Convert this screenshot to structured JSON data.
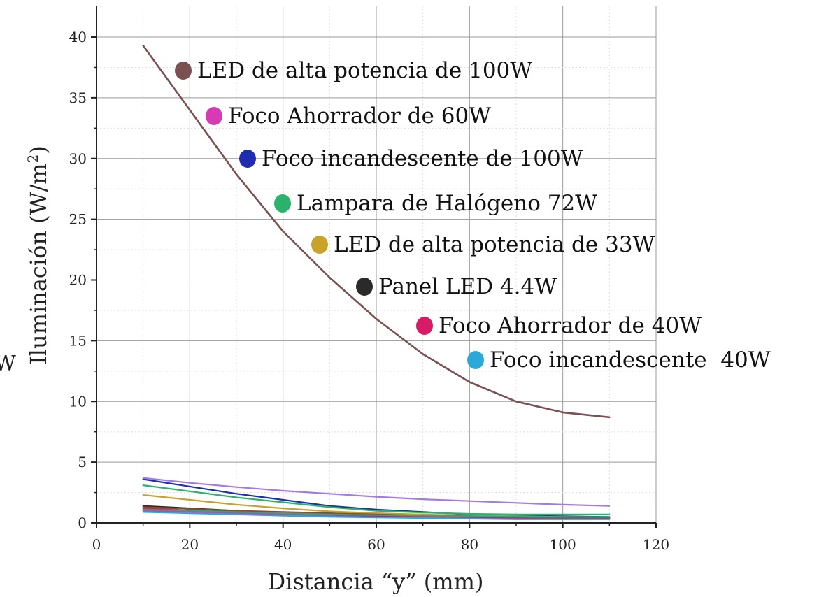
{
  "chart_data": {
    "type": "line",
    "title": "",
    "xlabel": "Distancia “y” (mm)",
    "ylabel": "Iluminación (W/m2)",
    "ylabel_main": "Iluminación (W/m",
    "ylabel_sup": "2",
    "ylabel_close": ")",
    "xlim": [
      0,
      120
    ],
    "ylim": [
      0,
      42
    ],
    "x_ticks": [
      0,
      20,
      40,
      60,
      80,
      100,
      120
    ],
    "y_ticks": [
      0,
      5,
      10,
      15,
      20,
      25,
      30,
      35,
      40
    ],
    "grid": true,
    "legend_position": "inside-center",
    "x": [
      10,
      20,
      30,
      40,
      50,
      60,
      70,
      80,
      90,
      100,
      110
    ],
    "series": [
      {
        "name": "LED de alta potencia de 100W",
        "color": "#7b5050",
        "values": [
          39.3,
          34.0,
          28.7,
          24.0,
          20.2,
          16.8,
          13.9,
          11.6,
          10.0,
          9.1,
          8.7
        ]
      },
      {
        "name": "Foco Ahorrador de 60W",
        "color": "#d63ab4",
        "values": [
          1.0,
          0.9,
          0.8,
          0.7,
          0.6,
          0.55,
          0.5,
          0.45,
          0.4,
          0.38,
          0.35
        ]
      },
      {
        "name": "Foco incandescente de 100W",
        "color": "#1f2db0",
        "values": [
          3.6,
          3.0,
          2.4,
          1.9,
          1.4,
          1.1,
          0.9,
          0.7,
          0.6,
          0.55,
          0.5
        ]
      },
      {
        "name": "Lampara de Halógeno 72W",
        "color": "#2bb36e",
        "values": [
          3.1,
          2.6,
          2.1,
          1.7,
          1.3,
          1.0,
          0.85,
          0.75,
          0.7,
          0.7,
          0.7
        ]
      },
      {
        "name": "LED de alta potencia de 33W",
        "color": "#c9a22a",
        "values": [
          2.3,
          1.9,
          1.5,
          1.2,
          0.95,
          0.8,
          0.7,
          0.6,
          0.55,
          0.5,
          0.45
        ]
      },
      {
        "name": "Panel LED 4.4W",
        "color": "#2a2a2a",
        "values": [
          1.4,
          1.2,
          1.0,
          0.85,
          0.7,
          0.6,
          0.5,
          0.45,
          0.4,
          0.38,
          0.35
        ]
      },
      {
        "name": "Foco Ahorrador de 40W",
        "color": "#d61c66",
        "values": [
          1.2,
          1.0,
          0.9,
          0.8,
          0.7,
          0.6,
          0.5,
          0.45,
          0.4,
          0.38,
          0.35
        ]
      },
      {
        "name": "Foco incandescente  40W",
        "color": "#2aa9d8",
        "values": [
          0.9,
          0.8,
          0.7,
          0.6,
          0.5,
          0.45,
          0.4,
          0.35,
          0.3,
          0.3,
          0.3
        ]
      },
      {
        "name": "",
        "color": "#a27ae6",
        "values": [
          3.7,
          3.3,
          2.95,
          2.65,
          2.4,
          2.15,
          1.95,
          1.8,
          1.65,
          1.5,
          1.4
        ]
      },
      {
        "name": "",
        "color": "#8b4a2e",
        "values": [
          1.3,
          1.15,
          1.0,
          0.9,
          0.8,
          0.7,
          0.6,
          0.55,
          0.5,
          0.45,
          0.45
        ]
      },
      {
        "name": "",
        "color": "#3e9c80",
        "values": [
          1.1,
          1.0,
          0.9,
          0.8,
          0.7,
          0.65,
          0.6,
          0.55,
          0.5,
          0.5,
          0.5
        ]
      }
    ],
    "edge_text": "W"
  }
}
